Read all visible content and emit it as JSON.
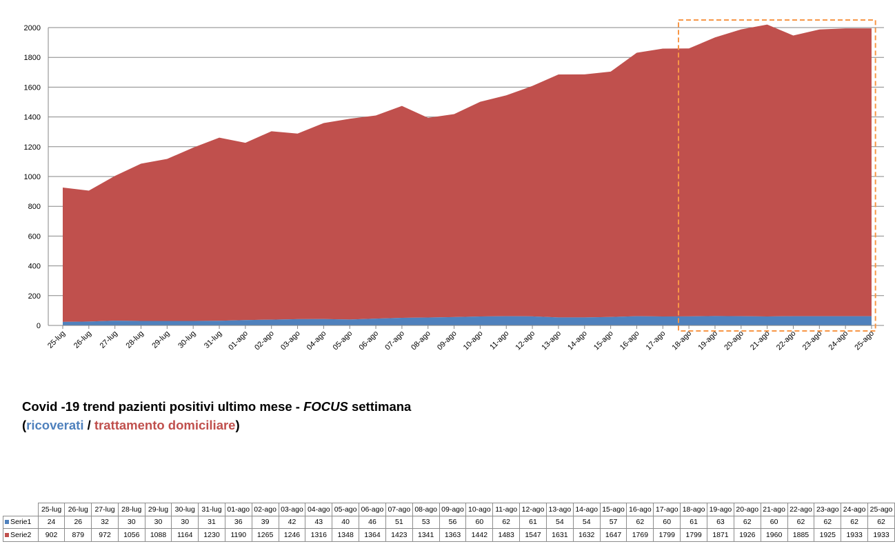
{
  "chart_data": {
    "type": "area",
    "stacked": true,
    "categories": [
      "25-lug",
      "26-lug",
      "27-lug",
      "28-lug",
      "29-lug",
      "30-lug",
      "31-lug",
      "01-ago",
      "02-ago",
      "03-ago",
      "04-ago",
      "05-ago",
      "06-ago",
      "07-ago",
      "08-ago",
      "09-ago",
      "10-ago",
      "11-ago",
      "12-ago",
      "13-ago",
      "14-ago",
      "15-ago",
      "16-ago",
      "17-ago",
      "18-ago",
      "19-ago",
      "20-ago",
      "21-ago",
      "22-ago",
      "23-ago",
      "24-ago",
      "25-ago"
    ],
    "series": [
      {
        "name": "Serie1",
        "color": "#4f81bd",
        "values": [
          24,
          26,
          32,
          30,
          30,
          30,
          31,
          36,
          39,
          42,
          43,
          40,
          46,
          51,
          53,
          56,
          60,
          62,
          61,
          54,
          54,
          57,
          62,
          60,
          61,
          63,
          62,
          60,
          62,
          62,
          62,
          62
        ]
      },
      {
        "name": "Serie2",
        "color": "#c0504d",
        "values": [
          902,
          879,
          972,
          1056,
          1088,
          1164,
          1230,
          1190,
          1265,
          1246,
          1316,
          1348,
          1364,
          1423,
          1341,
          1363,
          1442,
          1483,
          1547,
          1631,
          1632,
          1647,
          1769,
          1799,
          1799,
          1871,
          1926,
          1960,
          1885,
          1925,
          1933,
          1933
        ]
      }
    ],
    "ylim": [
      0,
      2000
    ],
    "yticks": [
      0,
      200,
      400,
      600,
      800,
      1000,
      1200,
      1400,
      1600,
      1800,
      2000
    ],
    "grid": true,
    "highlight": {
      "from": "18-ago",
      "to": "25-ago",
      "style": "dashed orange box",
      "color": "#f79646"
    },
    "title_parts": {
      "line1_pre": "Covid -19 trend pazienti positivi ultimo mese - ",
      "line1_focus": "FOCUS",
      "line1_post": " settimana",
      "open": "(",
      "blue_word": "ricoverati",
      "sep": " / ",
      "red_word": "trattamento domiciliare",
      "close": ")"
    }
  }
}
